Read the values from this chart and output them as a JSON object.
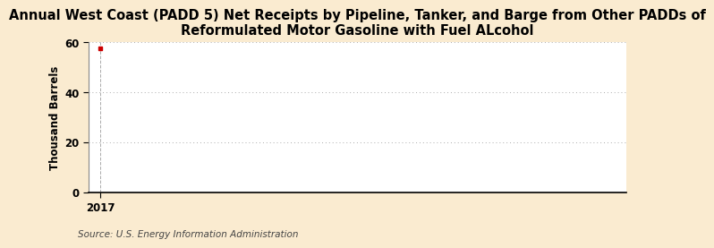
{
  "title": "Annual West Coast (PADD 5) Net Receipts by Pipeline, Tanker, and Barge from Other PADDs of\nReformulated Motor Gasoline with Fuel ALcohol",
  "ylabel": "Thousand Barrels",
  "source": "Source: U.S. Energy Information Administration",
  "x_data": [
    2017
  ],
  "y_data": [
    57.8
  ],
  "data_color": "#cc0000",
  "xlim": [
    2016.7,
    2030
  ],
  "ylim": [
    0,
    60
  ],
  "yticks": [
    0,
    20,
    40,
    60
  ],
  "xticks": [
    2017
  ],
  "background_color": "#faebd0",
  "plot_bg_color": "#ffffff",
  "grid_color": "#aaaaaa",
  "title_fontsize": 10.5,
  "ylabel_fontsize": 8.5,
  "source_fontsize": 7.5
}
